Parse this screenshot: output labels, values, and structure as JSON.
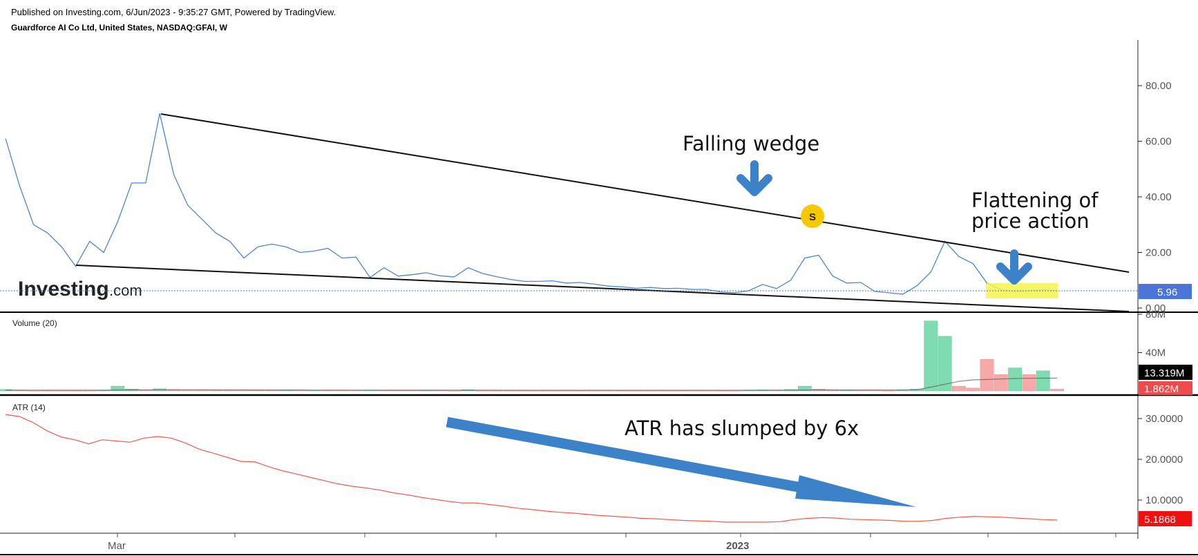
{
  "header": {
    "published": "Published on Investing.com, 6/Jun/2023 - 9:35:27 GMT, Powered by TradingView.",
    "symbol": "Guardforce AI Co Ltd, United States, NASDAQ:GFAI, W"
  },
  "brand": {
    "logo_main": "Investing",
    "logo_suffix": ".com"
  },
  "colors": {
    "price_line": "#4a86d0",
    "atr_line": "#f05a4a",
    "volume_up": "#7fdcb0",
    "volume_down": "#f7a9a9",
    "arrow_blue": "#3b82c8",
    "highlight_yellow": "#f5f34a",
    "price_tag": "#4a74d8",
    "atr_tag": "#f01010",
    "volume_tag_dark": "#000000",
    "volume_tag_red": "#f04a4a",
    "event_marker": "#f5c800"
  },
  "annotations": {
    "falling_wedge": "Falling wedge",
    "flattening_line1": "Flattening of",
    "flattening_line2": "price action",
    "atr_text": "ATR has slumped by 6x",
    "event_marker": "S"
  },
  "x_axis": {
    "labels": [
      "Mar",
      "2023"
    ]
  },
  "chart_data": [
    {
      "type": "line",
      "title": "Guardforce AI Co Ltd, United States, NASDAQ:GFAI, W",
      "y_ticks": [
        "80.00",
        "60.00",
        "40.00",
        "20.00",
        "0.00"
      ],
      "ylim": [
        0,
        92
      ],
      "last_value_label": "5.96",
      "series": [
        {
          "values": [
            61,
            44,
            30,
            27,
            22,
            15,
            24,
            20,
            31,
            45,
            45,
            70,
            48,
            37,
            32,
            27,
            24,
            18,
            22,
            23,
            22,
            20,
            20.5,
            21.5,
            18,
            18.3,
            11,
            14.5,
            11.5,
            12,
            12.7,
            11.6,
            11.2,
            14.5,
            12.5,
            11.3,
            10.3,
            9.6,
            9.6,
            9.8,
            9,
            9.2,
            8.6,
            7.9,
            7.6,
            7.1,
            7.4,
            7,
            7.1,
            6.7,
            6.7,
            5.8,
            5.5,
            6.2,
            8.5,
            7,
            10,
            18,
            19,
            11.5,
            9,
            9.2,
            6,
            5.5,
            5,
            8,
            13,
            24,
            18.5,
            16,
            9,
            6.6,
            6,
            6.2,
            6.5,
            6.2
          ]
        }
      ]
    },
    {
      "type": "bar",
      "title": "Volume (20)",
      "y_ticks": [
        "80M",
        "40M"
      ],
      "ylim": [
        0,
        80
      ],
      "unit": "M",
      "value_labels": [
        "13.319M",
        "1.862M"
      ],
      "bars": [
        {
          "v": 1.5,
          "d": "up"
        },
        {
          "v": 0.8,
          "d": "down"
        },
        {
          "v": 0.6,
          "d": "down"
        },
        {
          "v": 0.6,
          "d": "down"
        },
        {
          "v": 0.6,
          "d": "down"
        },
        {
          "v": 0.6,
          "d": "down"
        },
        {
          "v": 0.6,
          "d": "down"
        },
        {
          "v": 0.7,
          "d": "up"
        },
        {
          "v": 5,
          "d": "up"
        },
        {
          "v": 2,
          "d": "up"
        },
        {
          "v": 1,
          "d": "down"
        },
        {
          "v": 2.2,
          "d": "up"
        },
        {
          "v": 1.5,
          "d": "down"
        },
        {
          "v": 1,
          "d": "down"
        },
        {
          "v": 1,
          "d": "down"
        },
        {
          "v": 0.9,
          "d": "down"
        },
        {
          "v": 0.9,
          "d": "down"
        },
        {
          "v": 0.9,
          "d": "down"
        },
        {
          "v": 0.9,
          "d": "down"
        },
        {
          "v": 0.8,
          "d": "down"
        },
        {
          "v": 0.8,
          "d": "up"
        },
        {
          "v": 0.8,
          "d": "down"
        },
        {
          "v": 0.8,
          "d": "up"
        },
        {
          "v": 0.8,
          "d": "down"
        },
        {
          "v": 0.8,
          "d": "down"
        },
        {
          "v": 0.7,
          "d": "down"
        },
        {
          "v": 0.9,
          "d": "up"
        },
        {
          "v": 0.7,
          "d": "down"
        },
        {
          "v": 0.7,
          "d": "down"
        },
        {
          "v": 0.7,
          "d": "down"
        },
        {
          "v": 0.7,
          "d": "up"
        },
        {
          "v": 0.7,
          "d": "down"
        },
        {
          "v": 0.6,
          "d": "down"
        },
        {
          "v": 1.2,
          "d": "up"
        },
        {
          "v": 0.6,
          "d": "down"
        },
        {
          "v": 0.6,
          "d": "down"
        },
        {
          "v": 0.6,
          "d": "down"
        },
        {
          "v": 0.6,
          "d": "down"
        },
        {
          "v": 0.6,
          "d": "down"
        },
        {
          "v": 0.6,
          "d": "down"
        },
        {
          "v": 0.6,
          "d": "down"
        },
        {
          "v": 0.6,
          "d": "down"
        },
        {
          "v": 0.6,
          "d": "down"
        },
        {
          "v": 0.6,
          "d": "down"
        },
        {
          "v": 0.6,
          "d": "down"
        },
        {
          "v": 0.6,
          "d": "down"
        },
        {
          "v": 0.6,
          "d": "down"
        },
        {
          "v": 0.6,
          "d": "down"
        },
        {
          "v": 0.6,
          "d": "down"
        },
        {
          "v": 0.6,
          "d": "down"
        },
        {
          "v": 0.6,
          "d": "down"
        },
        {
          "v": 0.6,
          "d": "down"
        },
        {
          "v": 0.6,
          "d": "down"
        },
        {
          "v": 0.7,
          "d": "up"
        },
        {
          "v": 1,
          "d": "up"
        },
        {
          "v": 0.8,
          "d": "down"
        },
        {
          "v": 1.5,
          "d": "up"
        },
        {
          "v": 5,
          "d": "up"
        },
        {
          "v": 2,
          "d": "down"
        },
        {
          "v": 1.2,
          "d": "down"
        },
        {
          "v": 0.9,
          "d": "up"
        },
        {
          "v": 0.7,
          "d": "down"
        },
        {
          "v": 0.7,
          "d": "down"
        },
        {
          "v": 0.6,
          "d": "down"
        },
        {
          "v": 1,
          "d": "up"
        },
        {
          "v": 2,
          "d": "up"
        },
        {
          "v": 73,
          "d": "up"
        },
        {
          "v": 57,
          "d": "up"
        },
        {
          "v": 5,
          "d": "down"
        },
        {
          "v": 3,
          "d": "down"
        },
        {
          "v": 33,
          "d": "down"
        },
        {
          "v": 17,
          "d": "down"
        },
        {
          "v": 24,
          "d": "up"
        },
        {
          "v": 17,
          "d": "down"
        },
        {
          "v": 21,
          "d": "up"
        },
        {
          "v": 1.9,
          "d": "down"
        }
      ],
      "ma_values": [
        0.8,
        0.8,
        0.8,
        0.8,
        0.8,
        0.8,
        0.8,
        0.8,
        1,
        1.1,
        1.1,
        1.2,
        1.2,
        1.2,
        1.2,
        1.1,
        1.1,
        1.1,
        1,
        1,
        1,
        1,
        0.9,
        0.9,
        0.9,
        0.9,
        0.9,
        0.8,
        0.8,
        0.8,
        0.8,
        0.8,
        0.8,
        0.8,
        0.8,
        0.8,
        0.7,
        0.7,
        0.7,
        0.7,
        0.7,
        0.7,
        0.7,
        0.7,
        0.7,
        0.7,
        0.7,
        0.7,
        0.7,
        0.7,
        0.7,
        0.7,
        0.7,
        0.7,
        0.8,
        0.8,
        0.9,
        1,
        1,
        1,
        1,
        1,
        1,
        1,
        1.1,
        1.2,
        4,
        7,
        10,
        11.5,
        12,
        12.5,
        13,
        13.2,
        13.3,
        13.319
      ]
    },
    {
      "type": "line",
      "title": "ATR (14)",
      "y_ticks": [
        "30.0000",
        "20.0000",
        "10.0000"
      ],
      "ylim": [
        0,
        34
      ],
      "last_value_label": "5.1868",
      "series": [
        {
          "values": [
            31,
            30.5,
            29,
            27,
            25.5,
            24.8,
            23.8,
            24.8,
            24.5,
            24.2,
            25.2,
            25.6,
            25.2,
            24,
            22.5,
            21.5,
            20.5,
            19.5,
            19.4,
            18.2,
            17.2,
            16.4,
            15.6,
            14.8,
            14,
            13.4,
            13,
            12.5,
            11.8,
            11.3,
            10.7,
            10.2,
            9.7,
            9.3,
            9.3,
            8.9,
            8.5,
            8,
            7.7,
            7.3,
            7,
            6.8,
            6.5,
            6.2,
            6,
            5.8,
            5.5,
            5.4,
            5.2,
            5,
            4.9,
            4.8,
            4.6,
            4.6,
            4.6,
            4.6,
            4.7,
            5.2,
            5.5,
            5.7,
            5.6,
            5.3,
            5.2,
            5.1,
            5,
            4.8,
            4.8,
            5,
            5.5,
            5.8,
            6,
            5.9,
            5.8,
            5.6,
            5.4,
            5.2,
            5.1
          ]
        }
      ]
    }
  ]
}
